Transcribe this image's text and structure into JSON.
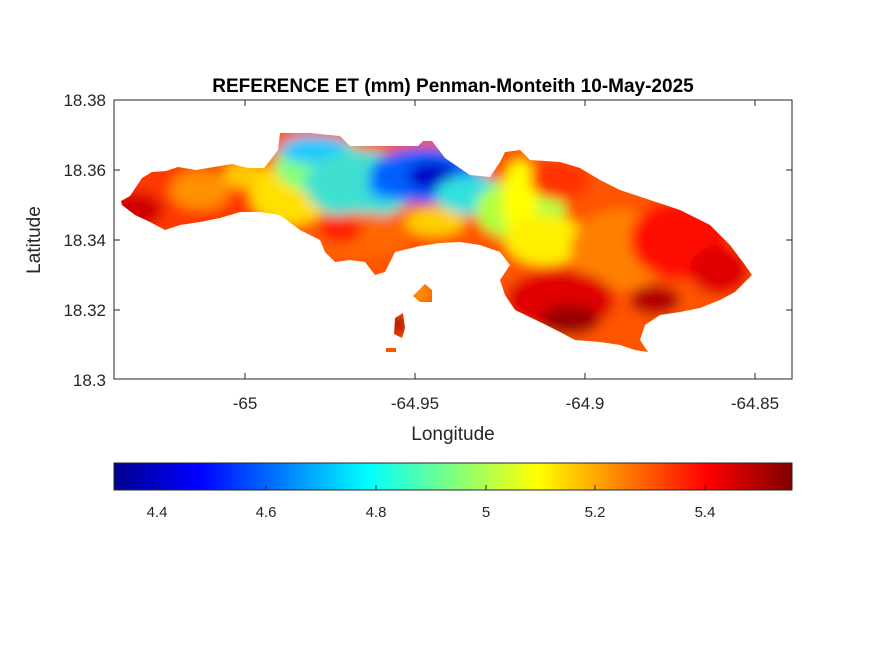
{
  "figure": {
    "title": "REFERENCE ET (mm) Penman-Monteith 10-May-2025",
    "xlabel": "Longitude",
    "ylabel": "Latitude"
  },
  "axes": {
    "x_ticks": [
      "-65",
      "-64.95",
      "-64.9",
      "-64.85"
    ],
    "y_ticks": [
      "18.38",
      "18.36",
      "18.34",
      "18.32",
      "18.3"
    ],
    "xlim": [
      -65.04,
      -64.836
    ],
    "ylim": [
      18.3,
      18.38
    ]
  },
  "colorbar": {
    "ticks": [
      "4.4",
      "4.6",
      "4.8",
      "5",
      "5.2",
      "5.4"
    ],
    "range": [
      4.33,
      5.56
    ],
    "colormap": "jet",
    "location": "southoutside"
  },
  "chart_data": {
    "type": "heatmap",
    "title": "REFERENCE ET (mm) Penman-Monteith 10-May-2025",
    "xlabel": "Longitude",
    "ylabel": "Latitude",
    "xlim": [
      -65.04,
      -64.836
    ],
    "ylim": [
      18.3,
      18.38
    ],
    "clim": [
      4.33,
      5.56
    ],
    "colormap": "jet",
    "variable": "REFERENCE ET (mm)",
    "approximate_regions": [
      {
        "lon": -64.955,
        "lat": 18.358,
        "value": 4.4
      },
      {
        "lon": -64.975,
        "lat": 18.362,
        "value": 4.65
      },
      {
        "lon": -64.99,
        "lat": 18.355,
        "value": 4.85
      },
      {
        "lon": -64.93,
        "lat": 18.345,
        "value": 4.85
      },
      {
        "lon": -64.92,
        "lat": 18.34,
        "value": 5.05
      },
      {
        "lon": -65.02,
        "lat": 18.352,
        "value": 5.35
      },
      {
        "lon": -64.975,
        "lat": 18.34,
        "value": 5.3
      },
      {
        "lon": -64.88,
        "lat": 18.34,
        "value": 5.45
      },
      {
        "lon": -64.9,
        "lat": 18.318,
        "value": 5.5
      },
      {
        "lon": -65.035,
        "lat": 18.347,
        "value": 5.55
      }
    ]
  }
}
